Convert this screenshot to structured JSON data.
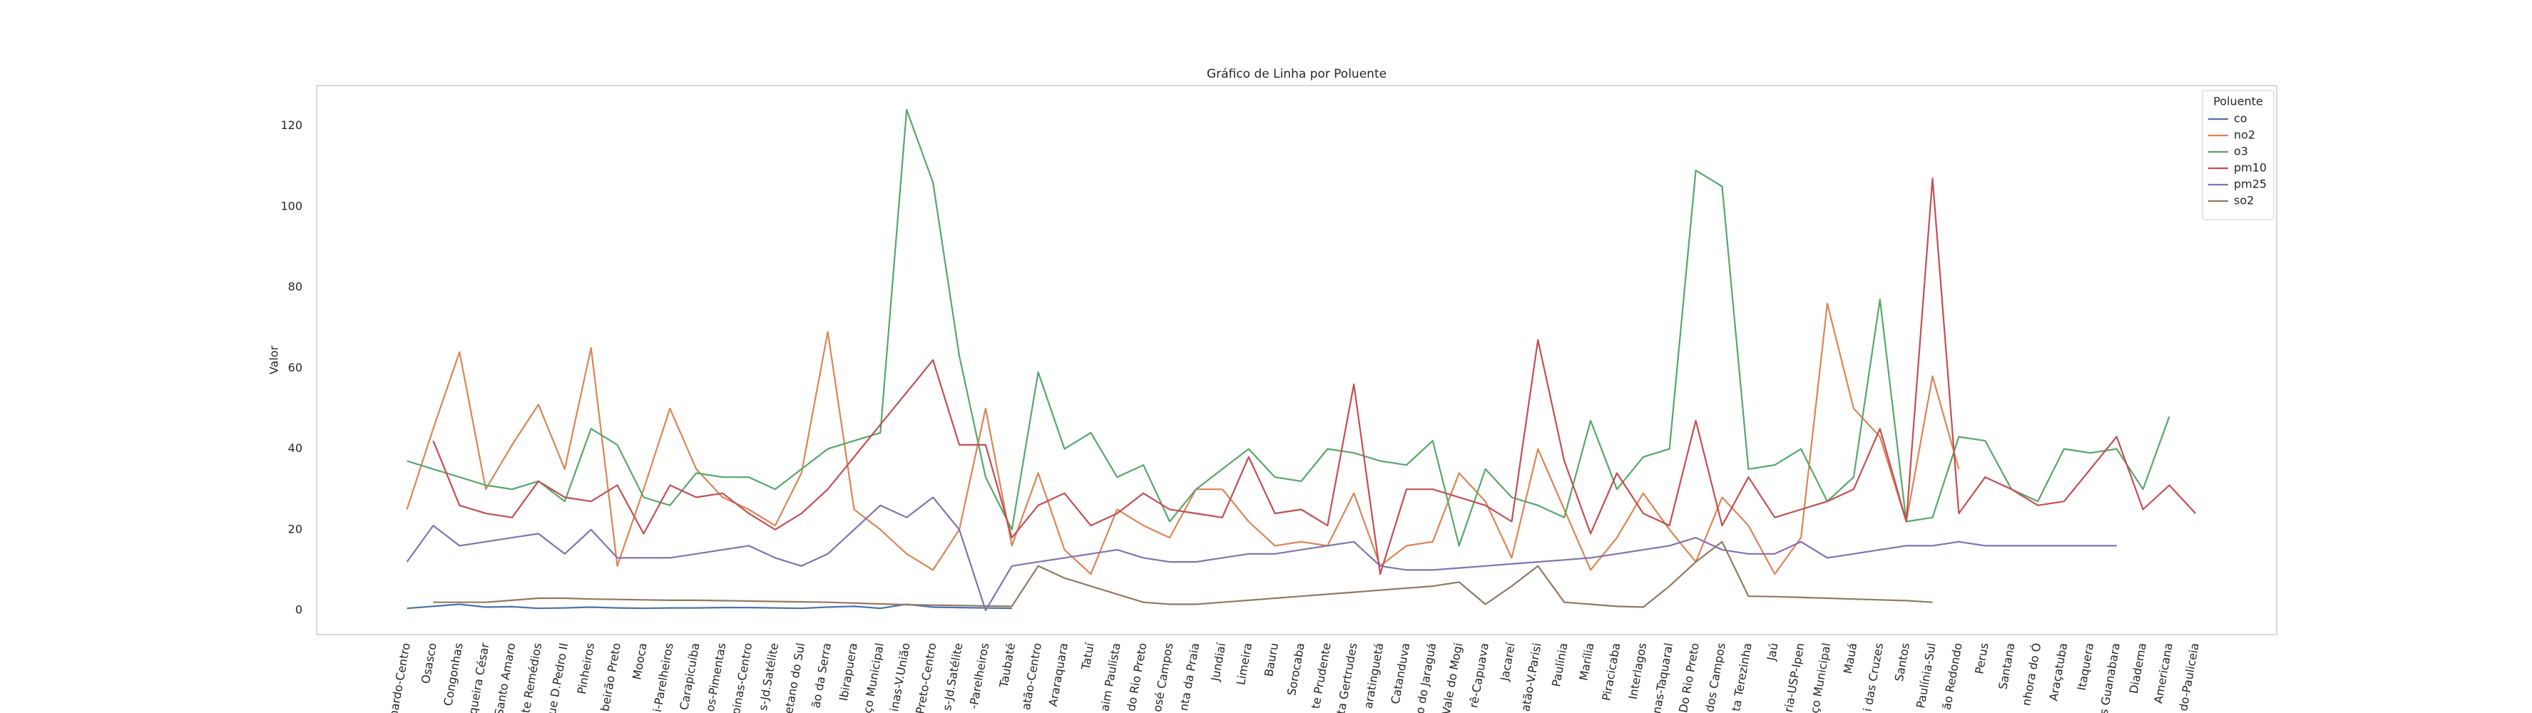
{
  "chart_data": {
    "type": "line",
    "title": "Gráfico de Linha por Poluente",
    "y_label": "Valor",
    "categories": [
      "nardo-Centro",
      "Osasco",
      "Congonhas",
      "queira César",
      "Santo Amaro",
      "te Remédios",
      "ue D.Pedro II",
      "Pinheiros",
      "beirão Preto",
      "Mooca",
      "i-Parelheiros",
      "Carapicuíba",
      "os-Pimentas",
      "pinas-Centro",
      "s-Jd.Satélite",
      "etano do Sul",
      "ão da Serra",
      "Ibirapuera",
      "ço Municipal",
      "inas-V.União",
      "Preto-Centro",
      "s-Jd.Satélite",
      "-Parelheiros",
      "Taubaté",
      "atão-Centro",
      "Araraquara",
      "Tatuí",
      "aim Paulista",
      "do Rio Preto",
      "osé Campos",
      "nta da Praia",
      "Jundiaí",
      "Limeira",
      "Bauru",
      "Sorocaba",
      "te Prudente",
      "ta Gertrudes",
      "aratinguetá",
      "Catanduva",
      "o do Jaraguá",
      "Vale do Mogi",
      "rê-Capuava",
      "Jacareí",
      "atão-V.Parisi",
      "Paulínia",
      "Marília",
      "Piracicaba",
      "Interlagos",
      "nas-Taquaral",
      "Do Rio Preto",
      "dos Campos",
      "ta Terezinha",
      "Jaú",
      "ria-USP-Ipen",
      "ço Municipal",
      "Mauá",
      "i das Cruzes",
      "Santos",
      "Paulínia-Sul",
      "ão Redondo",
      "Perus",
      "Santana",
      "nhora do Ó",
      "Araçatuba",
      "Itaquera",
      "s Guanabara",
      "Diadema",
      "Americana",
      "do-Pauliceia"
    ],
    "series": [
      {
        "name": "co",
        "color": "#4c72b0",
        "values": [
          0.5,
          1,
          1.5,
          0.8,
          0.9,
          0.5,
          0.6,
          0.8,
          0.6,
          0.5,
          0.6,
          0.6,
          0.7,
          0.7,
          0.6,
          0.5,
          0.8,
          1,
          0.5,
          1.5,
          0.8,
          0.7,
          0.6,
          0.5,
          null,
          null,
          null,
          null,
          null,
          null,
          null,
          null,
          null,
          null,
          null,
          null,
          null,
          null,
          null,
          null,
          null,
          null,
          null,
          null,
          null,
          null,
          null,
          null,
          null,
          null,
          null,
          null,
          null,
          null,
          null,
          null,
          null,
          null,
          null,
          null,
          null,
          null,
          null,
          null,
          null,
          null,
          null,
          null,
          null
        ]
      },
      {
        "name": "no2",
        "color": "#dd8452",
        "values": [
          25,
          45,
          64,
          30,
          41,
          51,
          35,
          65,
          11,
          30,
          50,
          35,
          28,
          25,
          21,
          34,
          69,
          25,
          20,
          14,
          10,
          20,
          50,
          16,
          34,
          15,
          9,
          25,
          21,
          18,
          30,
          30,
          22,
          16,
          17,
          16,
          29,
          11,
          16,
          17,
          34,
          27,
          13,
          40,
          25,
          10,
          18,
          29,
          20,
          12,
          28,
          21,
          9,
          18,
          76,
          50,
          43,
          22,
          58,
          35,
          null,
          null,
          null,
          null,
          null,
          null,
          null,
          null,
          null
        ]
      },
      {
        "name": "o3",
        "color": "#55a868",
        "values": [
          37,
          35,
          33,
          31,
          30,
          32,
          27,
          45,
          41,
          28,
          26,
          34,
          33,
          33,
          30,
          35,
          40,
          42,
          44,
          124,
          106,
          63,
          33,
          20,
          59,
          40,
          44,
          33,
          36,
          22,
          30,
          35,
          40,
          33,
          32,
          40,
          39,
          37,
          36,
          42,
          16,
          35,
          28,
          26,
          23,
          47,
          30,
          38,
          40,
          109,
          105,
          35,
          36,
          40,
          27,
          33,
          77,
          22,
          23,
          43,
          42,
          30,
          27,
          40,
          39,
          40,
          30,
          48,
          null
        ]
      },
      {
        "name": "pm10",
        "color": "#c44e52",
        "values": [
          null,
          42,
          26,
          24,
          23,
          32,
          28,
          27,
          31,
          19,
          31,
          28,
          29,
          24,
          20,
          24,
          30,
          38,
          46,
          54,
          62,
          41,
          41,
          18,
          26,
          29,
          21,
          24,
          29,
          25,
          24,
          23,
          38,
          24,
          25,
          21,
          56,
          9,
          30,
          30,
          28,
          26,
          22,
          67,
          37,
          19,
          34,
          24,
          21,
          47,
          21,
          33,
          23,
          25,
          27,
          30,
          45,
          22,
          107,
          24,
          33,
          30,
          26,
          27,
          35,
          43,
          25,
          31,
          24
        ]
      },
      {
        "name": "pm25",
        "color": "#8172b3",
        "values": [
          12,
          21,
          16,
          17,
          18,
          19,
          14,
          20,
          13,
          13,
          13,
          14,
          15,
          16,
          13,
          11,
          14,
          20,
          26,
          23,
          28,
          20,
          0,
          11,
          12,
          13,
          14,
          15,
          13,
          12,
          12,
          13,
          14,
          14,
          15,
          16,
          17,
          11,
          10,
          10,
          10.5,
          11,
          11.5,
          12,
          12.5,
          13,
          14,
          15,
          16,
          18,
          15,
          14,
          14,
          17,
          13,
          14,
          15,
          16,
          16,
          17,
          16,
          16,
          16,
          16,
          16,
          16,
          null,
          null,
          null
        ]
      },
      {
        "name": "so2",
        "color": "#937860",
        "values": [
          null,
          2,
          2,
          2,
          2.5,
          3,
          3,
          2.8,
          2.7,
          2.6,
          2.5,
          2.5,
          2.4,
          2.3,
          2.2,
          2.1,
          2,
          1.8,
          1.6,
          1.4,
          1.3,
          1.2,
          1.1,
          1,
          11,
          8,
          6,
          4,
          2,
          1.5,
          1.5,
          2,
          2.5,
          3,
          3.5,
          4,
          4.5,
          5,
          5.5,
          6,
          7,
          1.5,
          6,
          11,
          2,
          1.5,
          1,
          0.8,
          6,
          12,
          17,
          3.5,
          3.4,
          3.2,
          3,
          2.8,
          2.6,
          2.4,
          2,
          null,
          null,
          null,
          null,
          null,
          null,
          null,
          null,
          null,
          null
        ]
      }
    ],
    "ylim": [
      -6,
      130
    ],
    "yticks": [
      0,
      20,
      40,
      60,
      80,
      100,
      120
    ],
    "legend": {
      "title": "Poluente",
      "position": "upper right"
    },
    "grid": false
  }
}
